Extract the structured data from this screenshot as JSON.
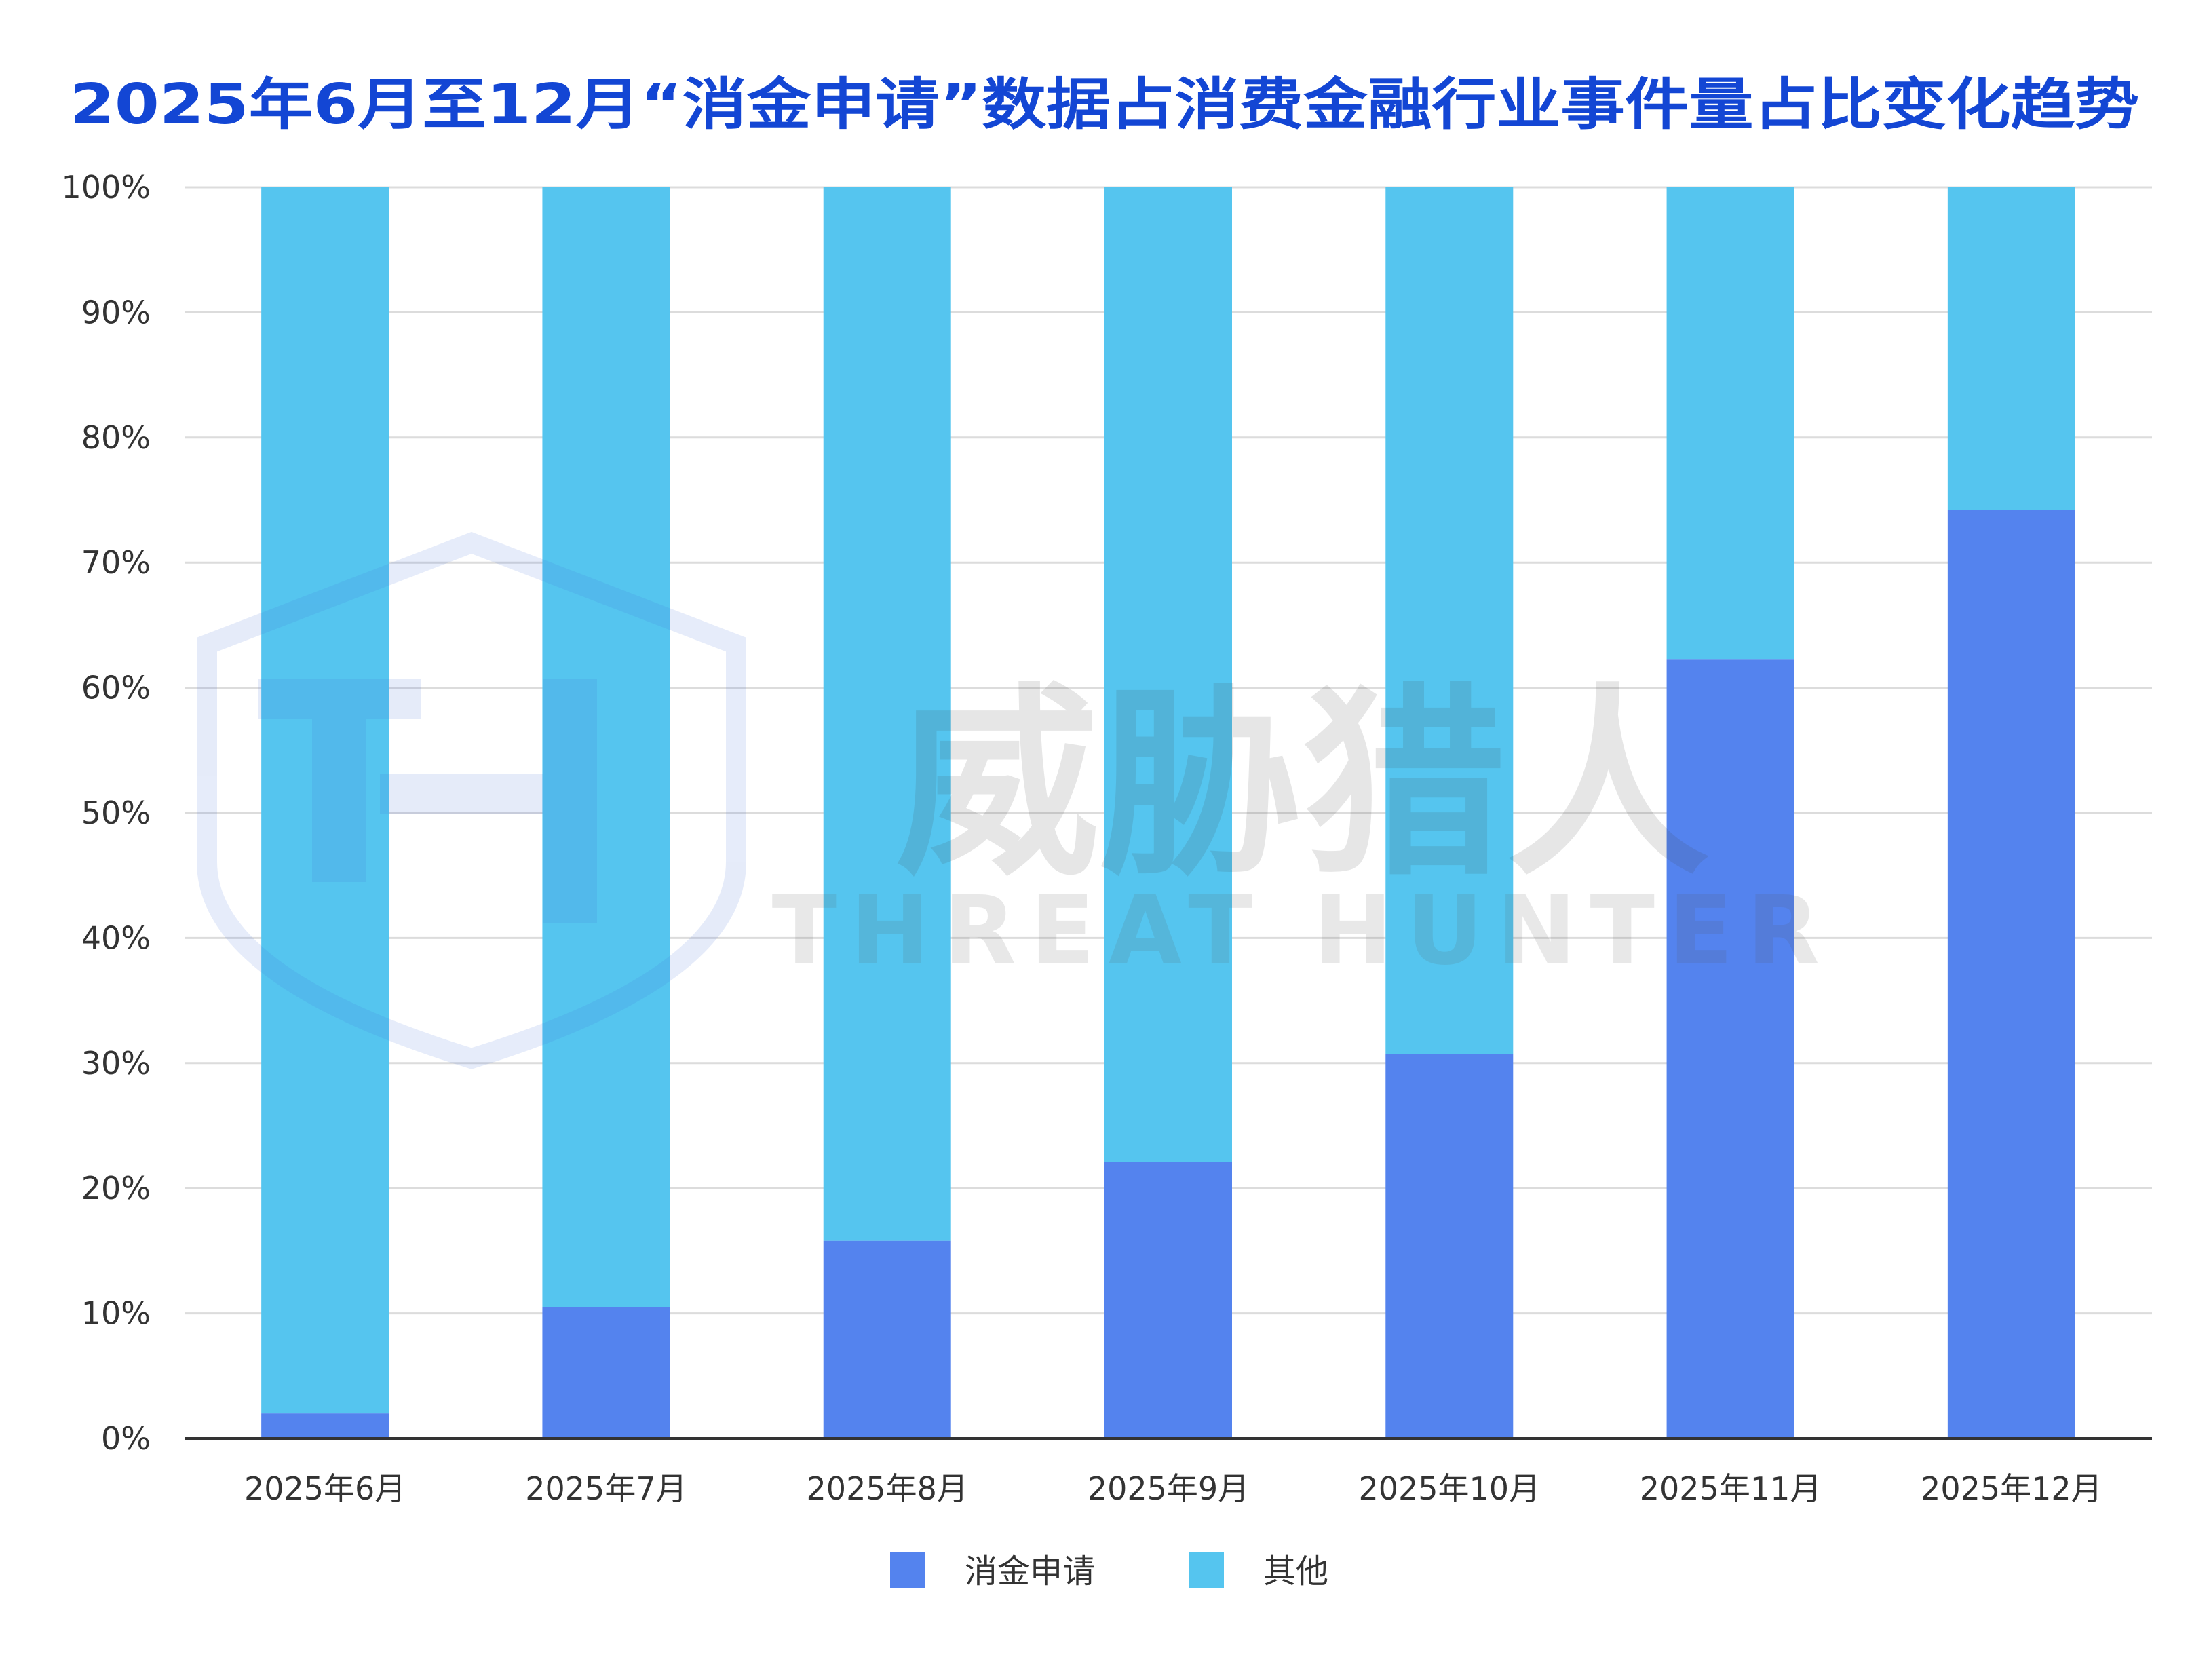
{
  "chart_data": {
    "type": "bar",
    "stacked": true,
    "title": "2025年6月至12月“消金申请”数据占消费金融行业事件量占比变化趋势",
    "categories": [
      "2025年6月",
      "2025年7月",
      "2025年8月",
      "2025年9月",
      "2025年10月",
      "2025年11月",
      "2025年12月"
    ],
    "series": [
      {
        "name": "消金申请",
        "color": "#5483ee",
        "values": [
          2.0,
          10.5,
          15.8,
          22.1,
          30.7,
          62.3,
          74.2
        ]
      },
      {
        "name": "其他",
        "color": "#55c5ef",
        "values": [
          98.0,
          89.5,
          84.2,
          77.9,
          69.3,
          37.7,
          25.8
        ]
      }
    ],
    "ylim": [
      0,
      100
    ],
    "yticks": [
      "0%",
      "10%",
      "20%",
      "30%",
      "40%",
      "50%",
      "60%",
      "70%",
      "80%",
      "90%",
      "100%"
    ],
    "xlabel": "",
    "ylabel": "",
    "grid": true,
    "legend": "bottom"
  },
  "watermark": {
    "cn": "威胁猎人",
    "en": "THREAT HUNTER",
    "icon": "shield-th-logo"
  }
}
